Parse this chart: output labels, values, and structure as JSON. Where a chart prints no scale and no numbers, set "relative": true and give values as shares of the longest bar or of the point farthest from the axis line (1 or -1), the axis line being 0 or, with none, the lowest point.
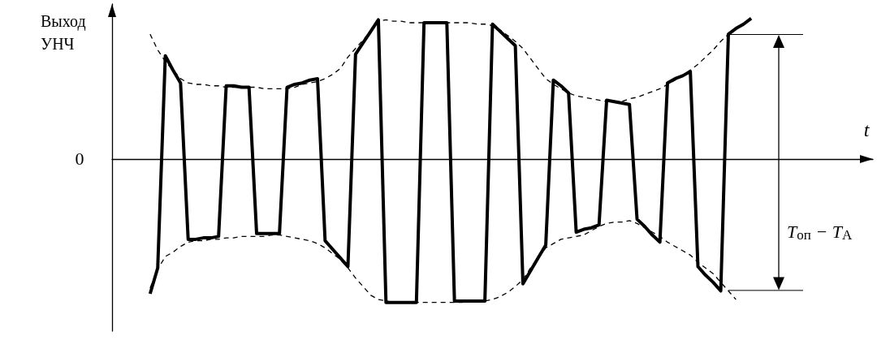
{
  "chart_data": {
    "type": "line",
    "relative": true,
    "xlabel": "t",
    "ylabel": "Выход УНЧ",
    "marker": "none",
    "annotations": [
      "0",
      "T$_{оп}$ − T$_{A}$"
    ],
    "categories": [
      null,
      null,
      null,
      null,
      null,
      null,
      null,
      null,
      null,
      null,
      null,
      null,
      null,
      null,
      null,
      null,
      null,
      null,
      null,
      null,
      null,
      null,
      null,
      null,
      null,
      null,
      null,
      null,
      null,
      null,
      null,
      null,
      null,
      null,
      null,
      null,
      null,
      null,
      null,
      null,
      null,
      null,
      null,
      null,
      null,
      null,
      null,
      null,
      null,
      null,
      null,
      null,
      null,
      null,
      null,
      null,
      null,
      null,
      null,
      null,
      null,
      null,
      null,
      null,
      null,
      null,
      null,
      null,
      null,
      null,
      null,
      null,
      null,
      null,
      null,
      null,
      null,
      null,
      null,
      null,
      null,
      null,
      null,
      null,
      null,
      null,
      null,
      null,
      null,
      null,
      null,
      null,
      null,
      null,
      null,
      null,
      null,
      null,
      null,
      null,
      null
    ],
    "series": [
      {
        "color": "#000000",
        "line_style": "solid",
        "values": [
          null,
          null,
          null,
          null,
          null,
          -0.94,
          -0.76,
          0.72,
          0.62,
          0.53,
          -0.56,
          -0.56,
          -0.55,
          -0.55,
          -0.54,
          0.51,
          0.51,
          0.5,
          0.5,
          -0.52,
          -0.52,
          -0.52,
          -0.52,
          0.5,
          0.52,
          0.53,
          0.55,
          0.56,
          -0.57,
          -0.63,
          -0.69,
          -0.75,
          0.73,
          0.81,
          0.89,
          0.97,
          -1,
          -1,
          -1,
          -1,
          -1,
          0.95,
          0.95,
          0.95,
          0.95,
          -0.99,
          -0.99,
          -0.99,
          -0.99,
          -0.99,
          0.94,
          0.89,
          0.84,
          0.79,
          -0.87,
          -0.78,
          -0.69,
          -0.6,
          0.55,
          0.51,
          0.46,
          -0.51,
          -0.49,
          -0.48,
          -0.46,
          0.41,
          0.4,
          0.39,
          0.38,
          -0.42,
          -0.47,
          -0.53,
          -0.58,
          0.53,
          0.56,
          0.58,
          0.61,
          -0.75,
          -0.81,
          -0.86,
          -0.92,
          0.87,
          0.91,
          0.94,
          0.98,
          null,
          null,
          null,
          null,
          null,
          null,
          null,
          null,
          null,
          null,
          null,
          null,
          null,
          null,
          null,
          null
        ]
      },
      {
        "color": "#000000",
        "line_style": "dashed",
        "values": [
          null,
          null,
          null,
          null,
          null,
          0.87,
          0.76,
          0.68,
          0.62,
          0.56,
          0.53,
          0.52,
          0.52,
          0.51,
          0.51,
          0.5,
          0.5,
          0.5,
          0.5,
          0.5,
          0.49,
          0.49,
          0.49,
          0.49,
          0.5,
          0.52,
          0.53,
          0.54,
          0.56,
          0.59,
          0.63,
          0.71,
          0.77,
          0.83,
          0.89,
          0.96,
          0.97,
          0.96,
          0.96,
          0.95,
          0.95,
          0.95,
          0.95,
          0.95,
          0.95,
          0.95,
          0.95,
          0.95,
          0.94,
          0.94,
          0.93,
          0.9,
          0.86,
          0.82,
          0.77,
          0.7,
          0.63,
          0.56,
          0.52,
          0.49,
          0.46,
          0.44,
          0.43,
          0.42,
          0.41,
          0.4,
          0.4,
          0.4,
          0.42,
          0.43,
          0.45,
          0.47,
          0.49,
          0.52,
          0.55,
          0.58,
          0.62,
          0.66,
          0.71,
          0.76,
          0.82,
          0.87,
          null,
          null,
          null,
          null,
          null,
          null,
          null,
          null,
          null,
          null,
          null,
          null,
          null,
          null,
          null,
          null,
          null,
          null,
          null
        ]
      },
      {
        "color": "#000000",
        "line_style": "dashed",
        "values": [
          null,
          null,
          null,
          null,
          null,
          -0.9,
          -0.77,
          -0.68,
          -0.65,
          -0.61,
          -0.58,
          -0.57,
          -0.57,
          -0.56,
          -0.56,
          -0.55,
          -0.55,
          -0.54,
          -0.54,
          -0.54,
          -0.54,
          -0.53,
          -0.53,
          -0.54,
          -0.55,
          -0.56,
          -0.57,
          -0.59,
          -0.62,
          -0.66,
          -0.7,
          -0.76,
          -0.83,
          -0.89,
          -0.95,
          -0.98,
          -0.99,
          -1,
          -1,
          -1,
          -1,
          -1,
          -1,
          -1,
          -1,
          -1,
          -1,
          -0.99,
          -0.99,
          -0.99,
          -0.98,
          -0.96,
          -0.93,
          -0.89,
          -0.84,
          -0.76,
          -0.69,
          -0.62,
          -0.59,
          -0.56,
          -0.55,
          -0.54,
          -0.53,
          -0.5,
          -0.47,
          -0.45,
          -0.44,
          -0.44,
          -0.43,
          -0.45,
          -0.48,
          -0.51,
          -0.54,
          -0.58,
          -0.61,
          -0.64,
          -0.67,
          -0.72,
          -0.76,
          -0.8,
          -0.86,
          -0.92,
          -0.98,
          null,
          null,
          null,
          null,
          null,
          null,
          null,
          null,
          null,
          null,
          null,
          null,
          null,
          null,
          null,
          null,
          null,
          null
        ]
      }
    ]
  }
}
